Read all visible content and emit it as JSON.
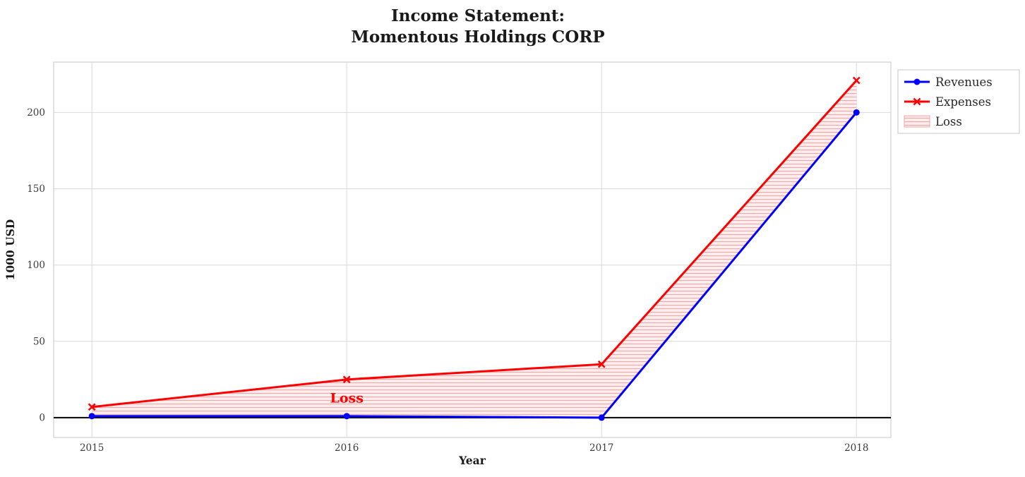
{
  "chart_data": {
    "type": "line",
    "title": "Income Statement:\nMomentous Holdings CORP",
    "title_lines": [
      "Income Statement:",
      "Momentous Holdings CORP"
    ],
    "xlabel": "Year",
    "ylabel": "1000 USD",
    "x": [
      2015,
      2016,
      2017,
      2018
    ],
    "series": [
      {
        "name": "Revenues",
        "color": "#0000ff",
        "marker": "circle",
        "values": [
          1,
          1,
          0,
          200
        ]
      },
      {
        "name": "Expenses",
        "color": "#ff0000",
        "marker": "x",
        "values": [
          7,
          25,
          35,
          221
        ]
      }
    ],
    "loss_area": {
      "label": "Loss",
      "between": [
        "Expenses",
        "Revenues"
      ],
      "fill": "#fdecec",
      "hatch_color": "#f3a5a5",
      "hatch_style": "horizontal-lines"
    },
    "annotation": {
      "text": "Loss",
      "x": 2016,
      "y": 10,
      "color": "#ff0000"
    },
    "yticks": [
      0,
      50,
      100,
      150,
      200
    ],
    "ylim": [
      -13,
      233
    ],
    "xlim": [
      2014.85,
      2018.135
    ],
    "zero_line": true,
    "zero_line_color": "#000000",
    "grid": true,
    "grid_color": "#d9d9d9",
    "legend": {
      "position": "upper-right",
      "items": [
        "Revenues",
        "Expenses",
        "Loss"
      ]
    }
  }
}
